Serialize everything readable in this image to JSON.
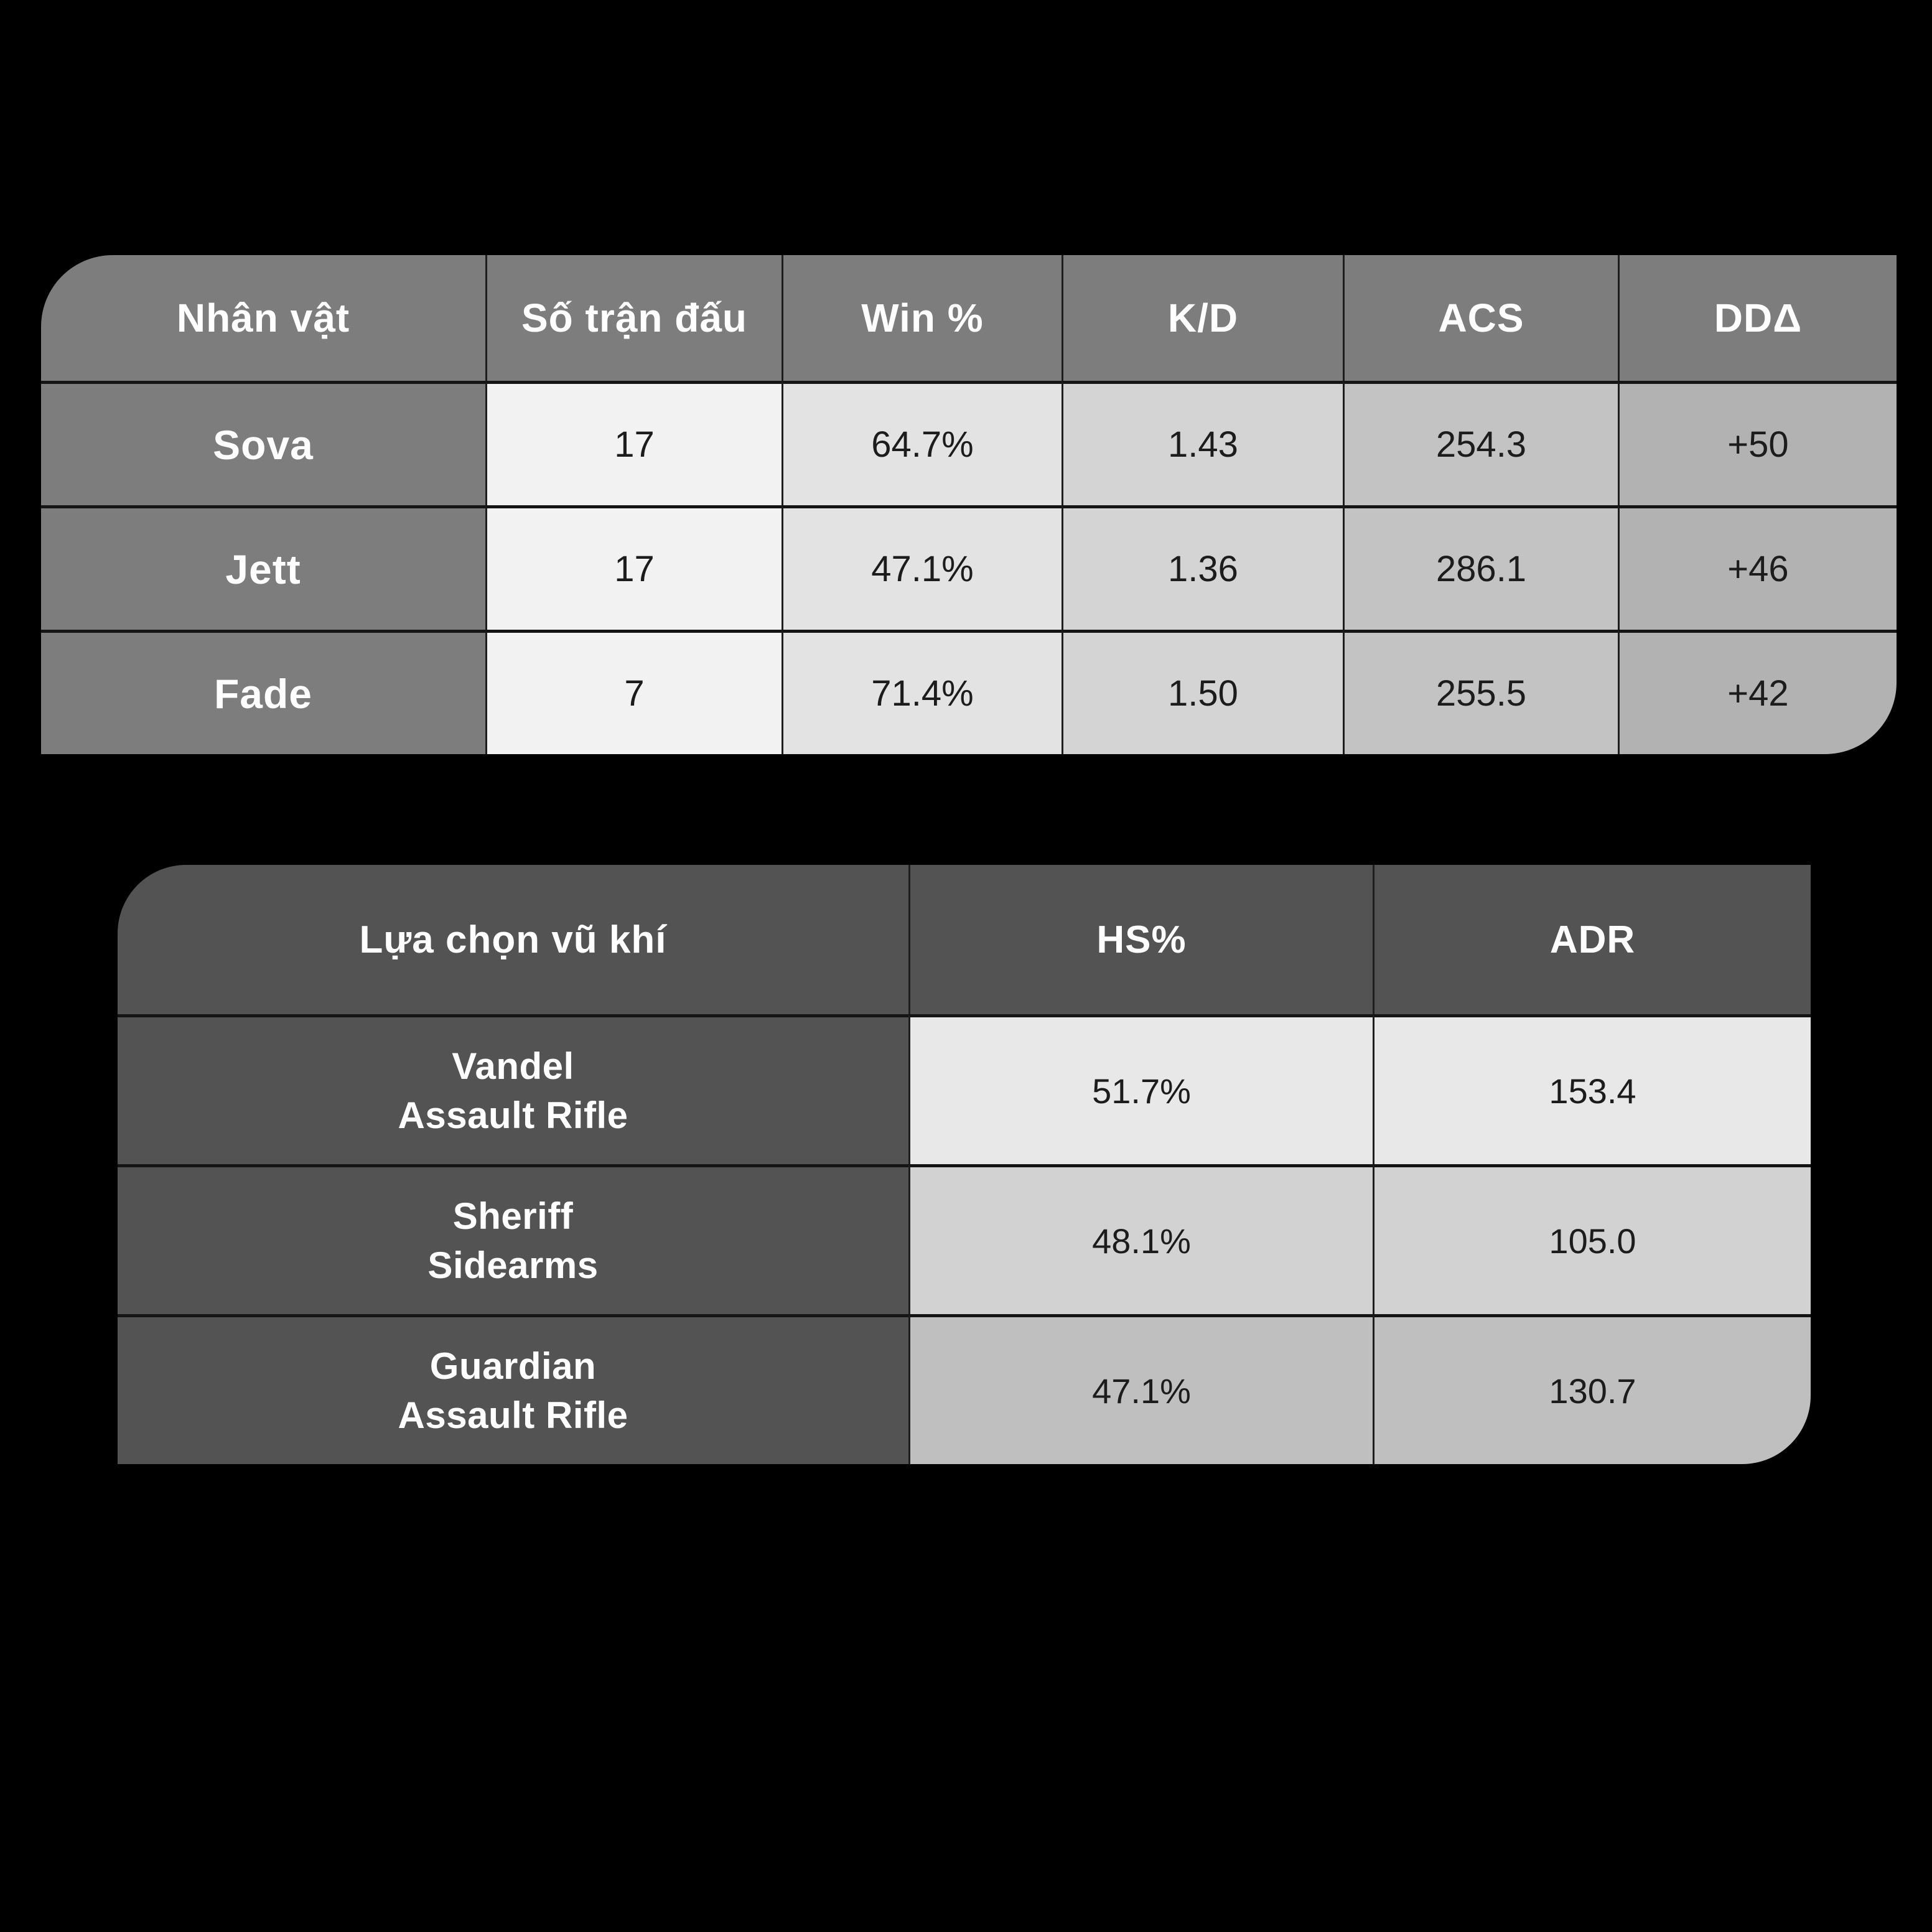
{
  "background_color": "#000000",
  "colors": {
    "t1_header_bg": "#7d7d7d",
    "t1_col_matches_bg": "#f2f2f2",
    "t1_col_win_bg": "#e3e3e3",
    "t1_col_kd_bg": "#d4d4d4",
    "t1_col_acs_bg": "#c3c3c3",
    "t1_col_dd_bg": "#b2b2b2",
    "t2_header_bg": "#535353",
    "t2_row1_bg": "#e8e8e8",
    "t2_row2_bg": "#d2d2d2",
    "t2_row3_bg": "#bfbfbf",
    "header_text": "#ffffff",
    "data_text": "#1c1c1c",
    "border": "#141414"
  },
  "table1": {
    "headers": [
      "Nhân vật",
      "Số trận đấu",
      "Win %",
      "K/D",
      "ACS",
      "DDΔ"
    ],
    "rows": [
      {
        "label": "Sova",
        "cells": [
          "17",
          "64.7%",
          "1.43",
          "254.3",
          "+50"
        ]
      },
      {
        "label": "Jett",
        "cells": [
          "17",
          "47.1%",
          "1.36",
          "286.1",
          "+46"
        ]
      },
      {
        "label": "Fade",
        "cells": [
          "7",
          "71.4%",
          "1.50",
          "255.5",
          "+42"
        ]
      }
    ]
  },
  "table2": {
    "headers": [
      "Lựa chọn vũ khí",
      "HS%",
      "ADR"
    ],
    "rows": [
      {
        "name_line1": "Vandel",
        "name_line2": "Assault Rifle",
        "cells": [
          "51.7%",
          "153.4"
        ]
      },
      {
        "name_line1": "Sheriff",
        "name_line2": "Sidearms",
        "cells": [
          "48.1%",
          "105.0"
        ]
      },
      {
        "name_line1": "Guardian",
        "name_line2": "Assault Rifle",
        "cells": [
          "47.1%",
          "130.7"
        ]
      }
    ]
  },
  "chart_data": [
    {
      "type": "table",
      "title": "Nhân vật",
      "columns": [
        "Nhân vật",
        "Số trận đấu",
        "Win %",
        "K/D",
        "ACS",
        "DDΔ"
      ],
      "rows": [
        [
          "Sova",
          17,
          "64.7%",
          1.43,
          254.3,
          "+50"
        ],
        [
          "Jett",
          17,
          "47.1%",
          1.36,
          286.1,
          "+46"
        ],
        [
          "Fade",
          7,
          "71.4%",
          1.5,
          255.5,
          "+42"
        ]
      ]
    },
    {
      "type": "table",
      "title": "Lựa chọn vũ khí",
      "columns": [
        "Lựa chọn vũ khí",
        "HS%",
        "ADR"
      ],
      "rows": [
        [
          "Vandel Assault Rifle",
          "51.7%",
          153.4
        ],
        [
          "Sheriff Sidearms",
          "48.1%",
          105.0
        ],
        [
          "Guardian Assault Rifle",
          "47.1%",
          130.7
        ]
      ]
    }
  ]
}
